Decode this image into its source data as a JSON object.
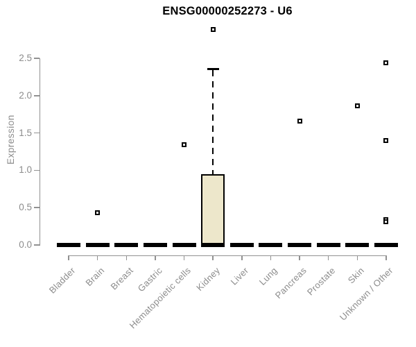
{
  "chart_data": {
    "type": "boxplot",
    "title": "ENSG00000252273 - U6",
    "ylabel": "Expression",
    "xlabel": "",
    "ylim": [
      0,
      2.9
    ],
    "grid": false,
    "legend": null,
    "yticks": [
      {
        "label": "0.0",
        "value": 0.0
      },
      {
        "label": "0.5",
        "value": 0.5
      },
      {
        "label": "1.0",
        "value": 1.0
      },
      {
        "label": "1.5",
        "value": 1.5
      },
      {
        "label": "2.0",
        "value": 2.0
      },
      {
        "label": "2.5",
        "value": 2.5
      }
    ],
    "categories": [
      "Bladder",
      "Brain",
      "Breast",
      "Gastric",
      "Hematopoietic cells",
      "Kidney",
      "Liver",
      "Lung",
      "Pancreas",
      "Prostate",
      "Skin",
      "Unknown / Other"
    ],
    "boxes": [
      {
        "category": "Bladder",
        "q1": 0,
        "median": 0,
        "q3": 0,
        "whisker_low": 0,
        "whisker_high": 0,
        "outliers": []
      },
      {
        "category": "Brain",
        "q1": 0,
        "median": 0,
        "q3": 0,
        "whisker_low": 0,
        "whisker_high": 0,
        "outliers": [
          0.43
        ]
      },
      {
        "category": "Breast",
        "q1": 0,
        "median": 0,
        "q3": 0,
        "whisker_low": 0,
        "whisker_high": 0,
        "outliers": []
      },
      {
        "category": "Gastric",
        "q1": 0,
        "median": 0,
        "q3": 0,
        "whisker_low": 0,
        "whisker_high": 0,
        "outliers": []
      },
      {
        "category": "Hematopoietic cells",
        "q1": 0,
        "median": 0,
        "q3": 0,
        "whisker_low": 0,
        "whisker_high": 0,
        "outliers": [
          1.34
        ]
      },
      {
        "category": "Kidney",
        "q1": 0,
        "median": 0,
        "q3": 0.95,
        "whisker_low": 0,
        "whisker_high": 2.36,
        "outliers": [
          2.89
        ]
      },
      {
        "category": "Liver",
        "q1": 0,
        "median": 0,
        "q3": 0,
        "whisker_low": 0,
        "whisker_high": 0,
        "outliers": []
      },
      {
        "category": "Lung",
        "q1": 0,
        "median": 0,
        "q3": 0,
        "whisker_low": 0,
        "whisker_high": 0,
        "outliers": []
      },
      {
        "category": "Pancreas",
        "q1": 0,
        "median": 0,
        "q3": 0,
        "whisker_low": 0,
        "whisker_high": 0,
        "outliers": [
          1.66
        ]
      },
      {
        "category": "Prostate",
        "q1": 0,
        "median": 0,
        "q3": 0,
        "whisker_low": 0,
        "whisker_high": 0,
        "outliers": []
      },
      {
        "category": "Skin",
        "q1": 0,
        "median": 0,
        "q3": 0,
        "whisker_low": 0,
        "whisker_high": 0,
        "outliers": [
          1.86
        ]
      },
      {
        "category": "Unknown / Other",
        "q1": 0,
        "median": 0,
        "q3": 0,
        "whisker_low": 0,
        "whisker_high": 0,
        "outliers": [
          2.44,
          1.4,
          0.34,
          0.31
        ]
      }
    ],
    "colors": {
      "box_fill": "#EDE7CB",
      "box_border": "#000000",
      "whisker": "#000000",
      "outlier_border": "#000000",
      "axis_line": "#919191",
      "tick_text": "#8C8C8C",
      "title_text": "#000000",
      "background": "#FFFFFF"
    }
  }
}
